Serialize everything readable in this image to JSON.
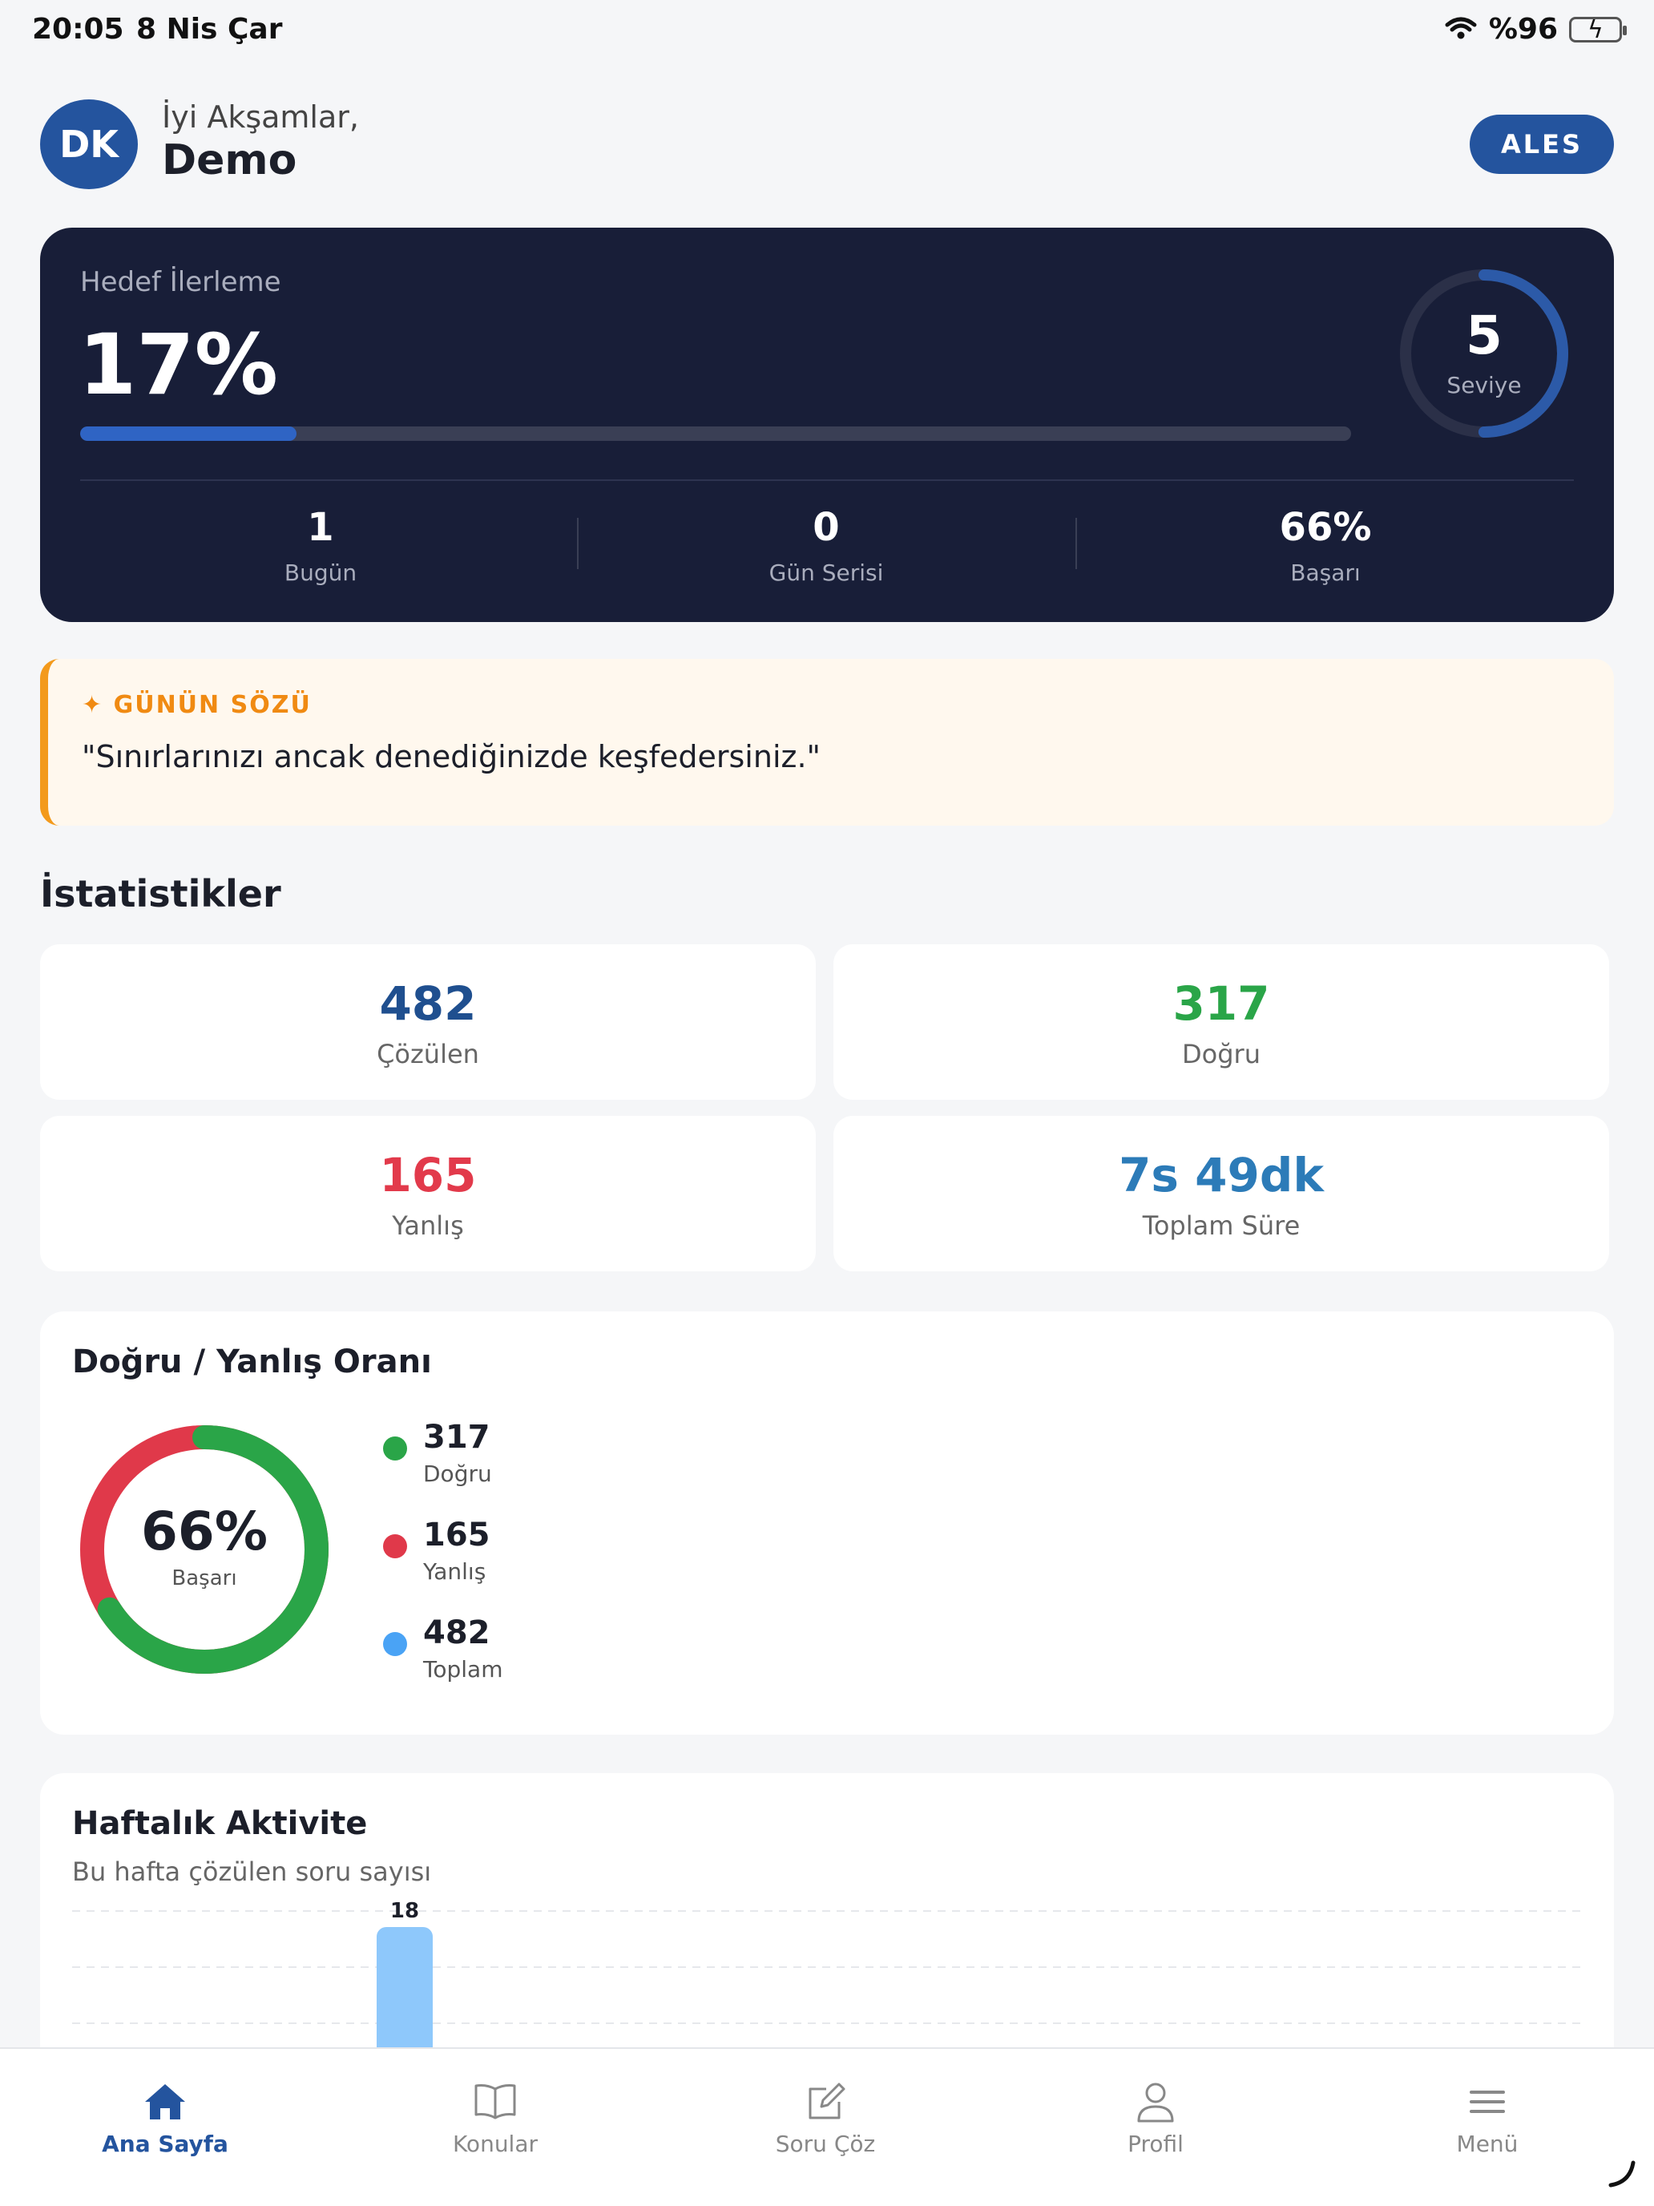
{
  "status_bar": {
    "time": "20:05",
    "date": "8 Nis Çar",
    "battery": "%96",
    "icons": [
      "wifi-icon",
      "battery-charging-icon"
    ]
  },
  "header": {
    "avatar_initials": "DK",
    "greeting": "İyi Akşamlar,",
    "name": "Demo",
    "exam_button": "ALES"
  },
  "goal": {
    "label": "Hedef İlerleme",
    "value_text": "17%",
    "progress_fraction": 0.17,
    "level": "5",
    "level_label": "Seviye",
    "level_ring_fraction": 0.5,
    "stats": [
      {
        "value": "1",
        "label": "Bugün"
      },
      {
        "value": "0",
        "label": "Gün Serisi"
      },
      {
        "value": "66%",
        "label": "Başarı"
      }
    ]
  },
  "quote": {
    "title": "✦ GÜNÜN SÖZÜ",
    "text": "\"Sınırlarınızı ancak denediğinizde keşfedersiniz.\""
  },
  "stats": {
    "title": "İstatistikler",
    "cards": [
      {
        "value": "482",
        "label": "Çözülen",
        "color": "#1f4f8f"
      },
      {
        "value": "317",
        "label": "Doğru",
        "color": "#2aa548"
      },
      {
        "value": "165",
        "label": "Yanlış",
        "color": "#e23a4b"
      },
      {
        "value": "7s 49dk",
        "label": "Toplam Süre",
        "color": "#2c7bb8"
      }
    ]
  },
  "ratio": {
    "title": "Doğru / Yanlış Oranı",
    "center_value": "66%",
    "center_label": "Başarı",
    "correct_fraction": 0.66,
    "legend": [
      {
        "value": "317",
        "label": "Doğru",
        "color": "#2aa548"
      },
      {
        "value": "165",
        "label": "Yanlış",
        "color": "#e0394a"
      },
      {
        "value": "482",
        "label": "Toplam",
        "color": "#4aa3f5"
      }
    ]
  },
  "weekly": {
    "title": "Haftalık Aktivite",
    "subtitle": "Bu hafta çözülen soru sayısı"
  },
  "chart_data": {
    "type": "bar",
    "title": "Haftalık Aktivite",
    "subtitle": "Bu hafta çözülen soru sayısı",
    "categories": [
      "",
      "",
      "",
      "",
      "",
      "",
      ""
    ],
    "values": [
      0,
      0,
      18,
      0,
      0,
      0,
      0
    ],
    "data_labels": [
      "",
      "",
      "18",
      "",
      "",
      "",
      ""
    ],
    "bar_color": "#8ec8fb",
    "grid": true
  },
  "tabbar": {
    "tabs": [
      {
        "label": "Ana Sayfa",
        "icon": "home-icon",
        "active": true
      },
      {
        "label": "Konular",
        "icon": "book-icon",
        "active": false
      },
      {
        "label": "Soru Çöz",
        "icon": "edit-icon",
        "active": false
      },
      {
        "label": "Profil",
        "icon": "user-icon",
        "active": false
      },
      {
        "label": "Menü",
        "icon": "menu-icon",
        "active": false
      }
    ]
  }
}
